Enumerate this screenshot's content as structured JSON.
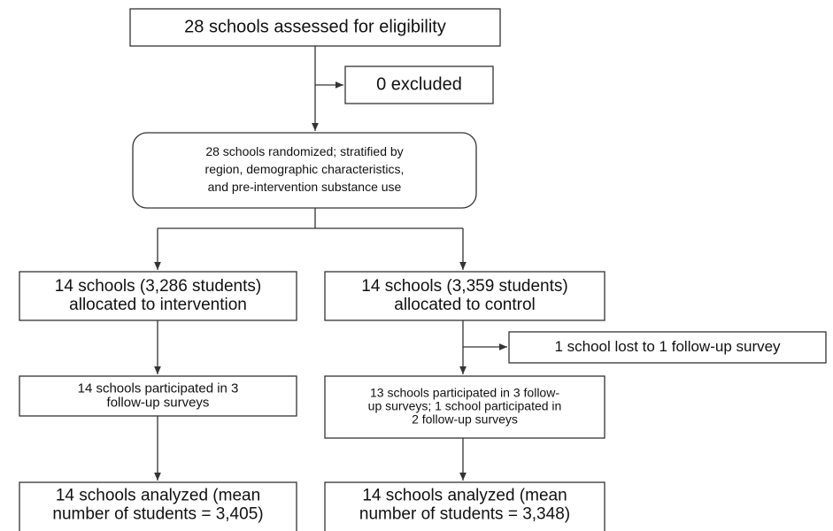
{
  "nodes": [
    {
      "lines": [
        "28 schools assessed for eligibility"
      ]
    },
    {
      "lines": [
        "0 excluded"
      ]
    },
    {
      "lines": [
        "28 schools randomized; stratified by",
        "region, demographic characteristics,",
        "and pre-intervention substance use"
      ]
    },
    {
      "lines": [
        "14 schools (3,286 students)",
        "allocated to intervention"
      ]
    },
    {
      "lines": [
        "14 schools (3,359 students)",
        "allocated to control"
      ]
    },
    {
      "lines": [
        "14 schools participated in 3",
        "follow-up surveys"
      ]
    },
    {
      "lines": [
        "1 school lost to 1 follow-up survey"
      ]
    },
    {
      "lines": [
        "13 schools participated in 3 follow-",
        "up surveys; 1 school participated in",
        "2 follow-up surveys"
      ]
    },
    {
      "lines": [
        "14 schools analyzed (mean",
        "number of students = 3,405)"
      ]
    },
    {
      "lines": [
        "14 schools analyzed (mean",
        "number of students = 3,348)"
      ]
    }
  ]
}
